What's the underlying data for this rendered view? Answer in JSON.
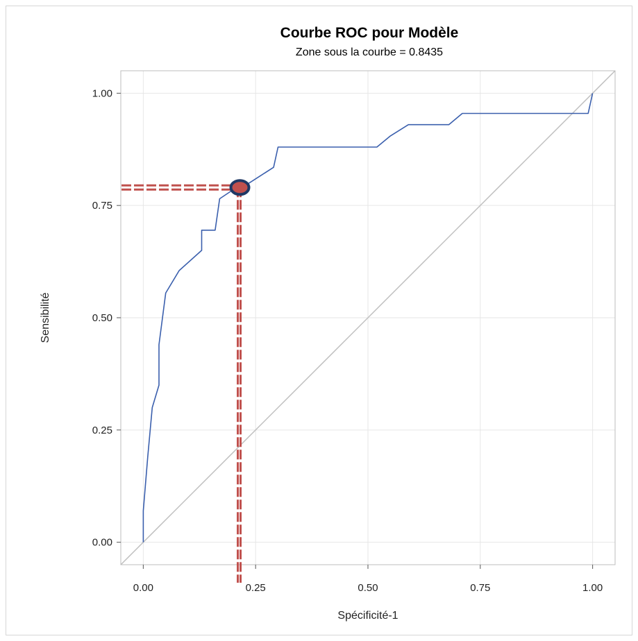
{
  "chart_data": {
    "type": "line",
    "title": "Courbe ROC pour Modèle",
    "subtitle": "Zone sous la courbe = 0.8435",
    "xlabel": "Spécificité-1",
    "ylabel": "Sensibilité",
    "xlim": [
      -0.05,
      1.05
    ],
    "ylim": [
      -0.05,
      1.05
    ],
    "xticks": [
      0,
      0.25,
      0.5,
      0.75,
      1
    ],
    "yticks": [
      0,
      0.25,
      0.5,
      0.75,
      1
    ],
    "xtick_labels": [
      "0.00",
      "0.25",
      "0.50",
      "0.75",
      "1.00"
    ],
    "ytick_labels": [
      "0.00",
      "0.25",
      "0.50",
      "0.75",
      "1.00"
    ],
    "grid": true,
    "series": [
      {
        "color": "#3a5fad",
        "x": [
          0,
          0,
          0.01,
          0.02,
          0.035,
          0.035,
          0.05,
          0.08,
          0.13,
          0.13,
          0.16,
          0.17,
          0.2,
          0.22,
          0.29,
          0.3,
          0.52,
          0.55,
          0.59,
          0.68,
          0.71,
          0.99,
          1.0
        ],
        "y": [
          0,
          0.07,
          0.19,
          0.3,
          0.35,
          0.44,
          0.555,
          0.605,
          0.65,
          0.695,
          0.695,
          0.765,
          0.785,
          0.79,
          0.835,
          0.88,
          0.88,
          0.905,
          0.93,
          0.93,
          0.955,
          0.955,
          1.0
        ]
      },
      {
        "color": "#bfbfbf",
        "x": [
          -0.05,
          1.05
        ],
        "y": [
          -0.05,
          1.05
        ]
      }
    ],
    "highlight": {
      "x": 0.215,
      "y": 0.79,
      "marker_color": "#c0504d",
      "marker_outline": "#1f3864",
      "guide_color": "#c0504d"
    }
  }
}
